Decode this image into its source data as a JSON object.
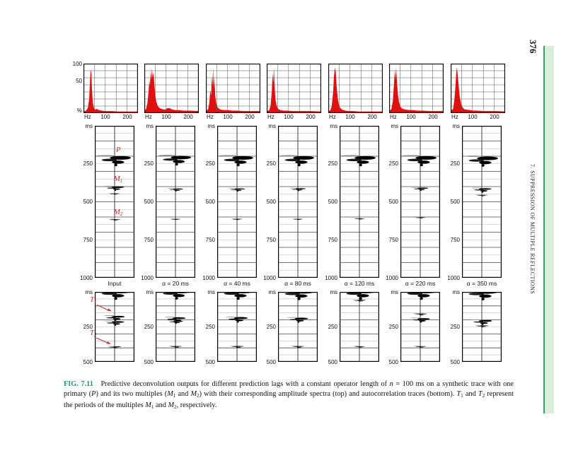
{
  "page": {
    "number": "376",
    "running_head": "7. SUPPRESSION OF MULTIPLE REFLECTIONS"
  },
  "colors": {
    "band_fill": "#d9eedb",
    "band_edge": "#2ea36b",
    "spectrum_red": "#e80d0d",
    "annotation_red": "#cc2a2a",
    "caption_label_green": "#149e63"
  },
  "figure": {
    "spectra_axis_labels": [
      "100",
      "50",
      "%"
    ],
    "spectra_x_ticks": [
      "Hz",
      "100",
      "200"
    ],
    "mid_ticks": [
      "ms",
      "250",
      "500",
      "750",
      "1000"
    ],
    "bot_ticks": [
      "ms",
      "250",
      "500"
    ],
    "spectra_x_range_hz": [
      0,
      250
    ],
    "trace_range_ms": [
      0,
      1000
    ],
    "autocorr_range_ms": [
      0,
      500
    ],
    "columns": [
      {
        "label": "Input",
        "spectrum": [
          [
            0,
            2
          ],
          [
            12,
            4
          ],
          [
            20,
            10
          ],
          [
            26,
            30
          ],
          [
            30,
            70
          ],
          [
            33,
            97
          ],
          [
            36,
            88
          ],
          [
            39,
            50
          ],
          [
            43,
            22
          ],
          [
            48,
            10
          ],
          [
            55,
            6
          ],
          [
            62,
            8
          ],
          [
            70,
            5
          ],
          [
            85,
            4
          ],
          [
            100,
            3
          ],
          [
            130,
            3
          ],
          [
            160,
            2
          ],
          [
            200,
            2
          ],
          [
            250,
            2
          ]
        ],
        "trace_events": [
          {
            "t": 225,
            "a": 1.0
          },
          {
            "t": 410,
            "a": 0.45
          },
          {
            "t": 448,
            "a": 0.12
          },
          {
            "t": 618,
            "a": 0.15
          }
        ],
        "autocorr_events": [
          {
            "t": 12,
            "a": 1.0
          },
          {
            "t": 185,
            "a": 0.5
          },
          {
            "t": 222,
            "a": 0.45
          },
          {
            "t": 395,
            "a": 0.2
          }
        ]
      },
      {
        "label": "α = 20 ms",
        "spectrum": [
          [
            0,
            3
          ],
          [
            8,
            8
          ],
          [
            14,
            20
          ],
          [
            19,
            45
          ],
          [
            23,
            72
          ],
          [
            26,
            60
          ],
          [
            29,
            92
          ],
          [
            32,
            74
          ],
          [
            35,
            99
          ],
          [
            38,
            78
          ],
          [
            42,
            90
          ],
          [
            46,
            62
          ],
          [
            50,
            40
          ],
          [
            55,
            24
          ],
          [
            62,
            14
          ],
          [
            72,
            9
          ],
          [
            85,
            7
          ],
          [
            95,
            6
          ],
          [
            105,
            9
          ],
          [
            115,
            10
          ],
          [
            125,
            7
          ],
          [
            140,
            5
          ],
          [
            160,
            5
          ],
          [
            180,
            4
          ],
          [
            210,
            4
          ],
          [
            250,
            3
          ]
        ],
        "trace_events": [
          {
            "t": 222,
            "a": 0.95
          },
          {
            "t": 420,
            "a": 0.3
          },
          {
            "t": 615,
            "a": 0.08
          }
        ],
        "autocorr_events": [
          {
            "t": 12,
            "a": 0.95
          },
          {
            "t": 195,
            "a": 0.5
          },
          {
            "t": 215,
            "a": 0.3
          },
          {
            "t": 392,
            "a": 0.18
          }
        ]
      },
      {
        "label": "α = 40 ms",
        "spectrum": [
          [
            0,
            3
          ],
          [
            10,
            7
          ],
          [
            16,
            22
          ],
          [
            20,
            50
          ],
          [
            24,
            38
          ],
          [
            27,
            80
          ],
          [
            30,
            60
          ],
          [
            33,
            99
          ],
          [
            36,
            55
          ],
          [
            39,
            82
          ],
          [
            43,
            38
          ],
          [
            47,
            22
          ],
          [
            53,
            12
          ],
          [
            60,
            8
          ],
          [
            70,
            6
          ],
          [
            85,
            5
          ],
          [
            100,
            5
          ],
          [
            120,
            4
          ],
          [
            145,
            4
          ],
          [
            175,
            3
          ],
          [
            210,
            3
          ],
          [
            250,
            3
          ]
        ],
        "trace_events": [
          {
            "t": 225,
            "a": 1.0
          },
          {
            "t": 420,
            "a": 0.32
          },
          {
            "t": 615,
            "a": 0.1
          }
        ],
        "autocorr_events": [
          {
            "t": 12,
            "a": 1.0
          },
          {
            "t": 195,
            "a": 0.55
          },
          {
            "t": 392,
            "a": 0.2
          }
        ]
      },
      {
        "label": "α = 80 ms",
        "spectrum": [
          [
            0,
            2
          ],
          [
            12,
            5
          ],
          [
            18,
            16
          ],
          [
            23,
            45
          ],
          [
            27,
            88
          ],
          [
            30,
            66
          ],
          [
            33,
            100
          ],
          [
            36,
            60
          ],
          [
            40,
            30
          ],
          [
            45,
            15
          ],
          [
            52,
            8
          ],
          [
            62,
            5
          ],
          [
            78,
            4
          ],
          [
            95,
            4
          ],
          [
            115,
            3
          ],
          [
            140,
            3
          ],
          [
            170,
            3
          ],
          [
            200,
            3
          ],
          [
            250,
            2
          ]
        ],
        "trace_events": [
          {
            "t": 225,
            "a": 1.0
          },
          {
            "t": 418,
            "a": 0.3
          },
          {
            "t": 615,
            "a": 0.08
          }
        ],
        "autocorr_events": [
          {
            "t": 14,
            "a": 1.0
          },
          {
            "t": 198,
            "a": 0.5
          },
          {
            "t": 392,
            "a": 0.18
          }
        ]
      },
      {
        "label": "α = 120 ms",
        "spectrum": [
          [
            0,
            2
          ],
          [
            10,
            5
          ],
          [
            16,
            14
          ],
          [
            22,
            45
          ],
          [
            26,
            80
          ],
          [
            30,
            100
          ],
          [
            34,
            92
          ],
          [
            38,
            62
          ],
          [
            43,
            34
          ],
          [
            48,
            19
          ],
          [
            55,
            10
          ],
          [
            64,
            6
          ],
          [
            78,
            4
          ],
          [
            95,
            3
          ],
          [
            115,
            3
          ],
          [
            140,
            2
          ],
          [
            170,
            2
          ],
          [
            200,
            2
          ],
          [
            250,
            2
          ]
        ],
        "trace_events": [
          {
            "t": 225,
            "a": 1.0
          },
          {
            "t": 612,
            "a": 0.1
          }
        ],
        "autocorr_events": [
          {
            "t": 12,
            "a": 1.0
          },
          {
            "t": 62,
            "a": 0.18
          },
          {
            "t": 392,
            "a": 0.12
          }
        ]
      },
      {
        "label": "α = 220 ms",
        "spectrum": [
          [
            0,
            3
          ],
          [
            10,
            7
          ],
          [
            17,
            25
          ],
          [
            22,
            62
          ],
          [
            26,
            95
          ],
          [
            29,
            75
          ],
          [
            32,
            100
          ],
          [
            36,
            68
          ],
          [
            40,
            42
          ],
          [
            45,
            24
          ],
          [
            51,
            14
          ],
          [
            58,
            9
          ],
          [
            68,
            7
          ],
          [
            80,
            6
          ],
          [
            95,
            5
          ],
          [
            110,
            5
          ],
          [
            130,
            4
          ],
          [
            155,
            4
          ],
          [
            185,
            3
          ],
          [
            215,
            3
          ],
          [
            250,
            3
          ]
        ],
        "trace_events": [
          {
            "t": 225,
            "a": 1.0
          },
          {
            "t": 415,
            "a": 0.32
          },
          {
            "t": 605,
            "a": 0.08
          }
        ],
        "autocorr_events": [
          {
            "t": 12,
            "a": 1.0
          },
          {
            "t": 160,
            "a": 0.2
          },
          {
            "t": 200,
            "a": 0.45
          },
          {
            "t": 392,
            "a": 0.15
          }
        ]
      },
      {
        "label": "α = 350 ms",
        "spectrum": [
          [
            0,
            3
          ],
          [
            11,
            8
          ],
          [
            17,
            28
          ],
          [
            22,
            60
          ],
          [
            26,
            92
          ],
          [
            29,
            100
          ],
          [
            33,
            80
          ],
          [
            37,
            58
          ],
          [
            42,
            34
          ],
          [
            48,
            19
          ],
          [
            55,
            11
          ],
          [
            63,
            7
          ],
          [
            75,
            6
          ],
          [
            90,
            5
          ],
          [
            105,
            4
          ],
          [
            125,
            4
          ],
          [
            150,
            3
          ],
          [
            180,
            3
          ],
          [
            215,
            3
          ],
          [
            250,
            2
          ]
        ],
        "trace_events": [
          {
            "t": 228,
            "a": 1.0
          },
          {
            "t": 422,
            "a": 0.45
          },
          {
            "t": 458,
            "a": 0.15
          }
        ],
        "autocorr_events": [
          {
            "t": 15,
            "a": 1.0
          },
          {
            "t": 215,
            "a": 0.5
          },
          {
            "t": 245,
            "a": 0.2
          }
        ]
      }
    ],
    "annotations": {
      "primary": {
        "main": "P",
        "sub": ""
      },
      "multiple1": {
        "main": "M",
        "sub": "1"
      },
      "multiple2": {
        "main": "M",
        "sub": "2"
      },
      "period1": {
        "main": "T",
        "sub": "1"
      },
      "period2": {
        "main": "T",
        "sub": "2"
      }
    }
  },
  "caption": {
    "label": "FIG. 7.11",
    "segments": [
      {
        "t": "Predictive deconvolution outputs for different prediction lags with a constant operator length of "
      },
      {
        "t": "n",
        "i": 1
      },
      {
        "t": " = 100 ms on a synthetic trace with one primary ("
      },
      {
        "t": "P",
        "i": 1
      },
      {
        "t": ") and its two multiples ("
      },
      {
        "t": "M",
        "i": 1
      },
      {
        "t": "1",
        "s": 1
      },
      {
        "t": " and "
      },
      {
        "t": "M",
        "i": 1
      },
      {
        "t": "2",
        "s": 1
      },
      {
        "t": ") with their corresponding amplitude spectra (top) and autocorrelation traces (bottom). "
      },
      {
        "t": "T",
        "i": 1
      },
      {
        "t": "1",
        "s": 1
      },
      {
        "t": " and "
      },
      {
        "t": "T",
        "i": 1
      },
      {
        "t": "2",
        "s": 1
      },
      {
        "t": " represent the periods of the multiples "
      },
      {
        "t": "M",
        "i": 1
      },
      {
        "t": "1",
        "s": 1
      },
      {
        "t": " and "
      },
      {
        "t": "M",
        "i": 1
      },
      {
        "t": "2",
        "s": 1
      },
      {
        "t": ", respectively."
      }
    ]
  }
}
